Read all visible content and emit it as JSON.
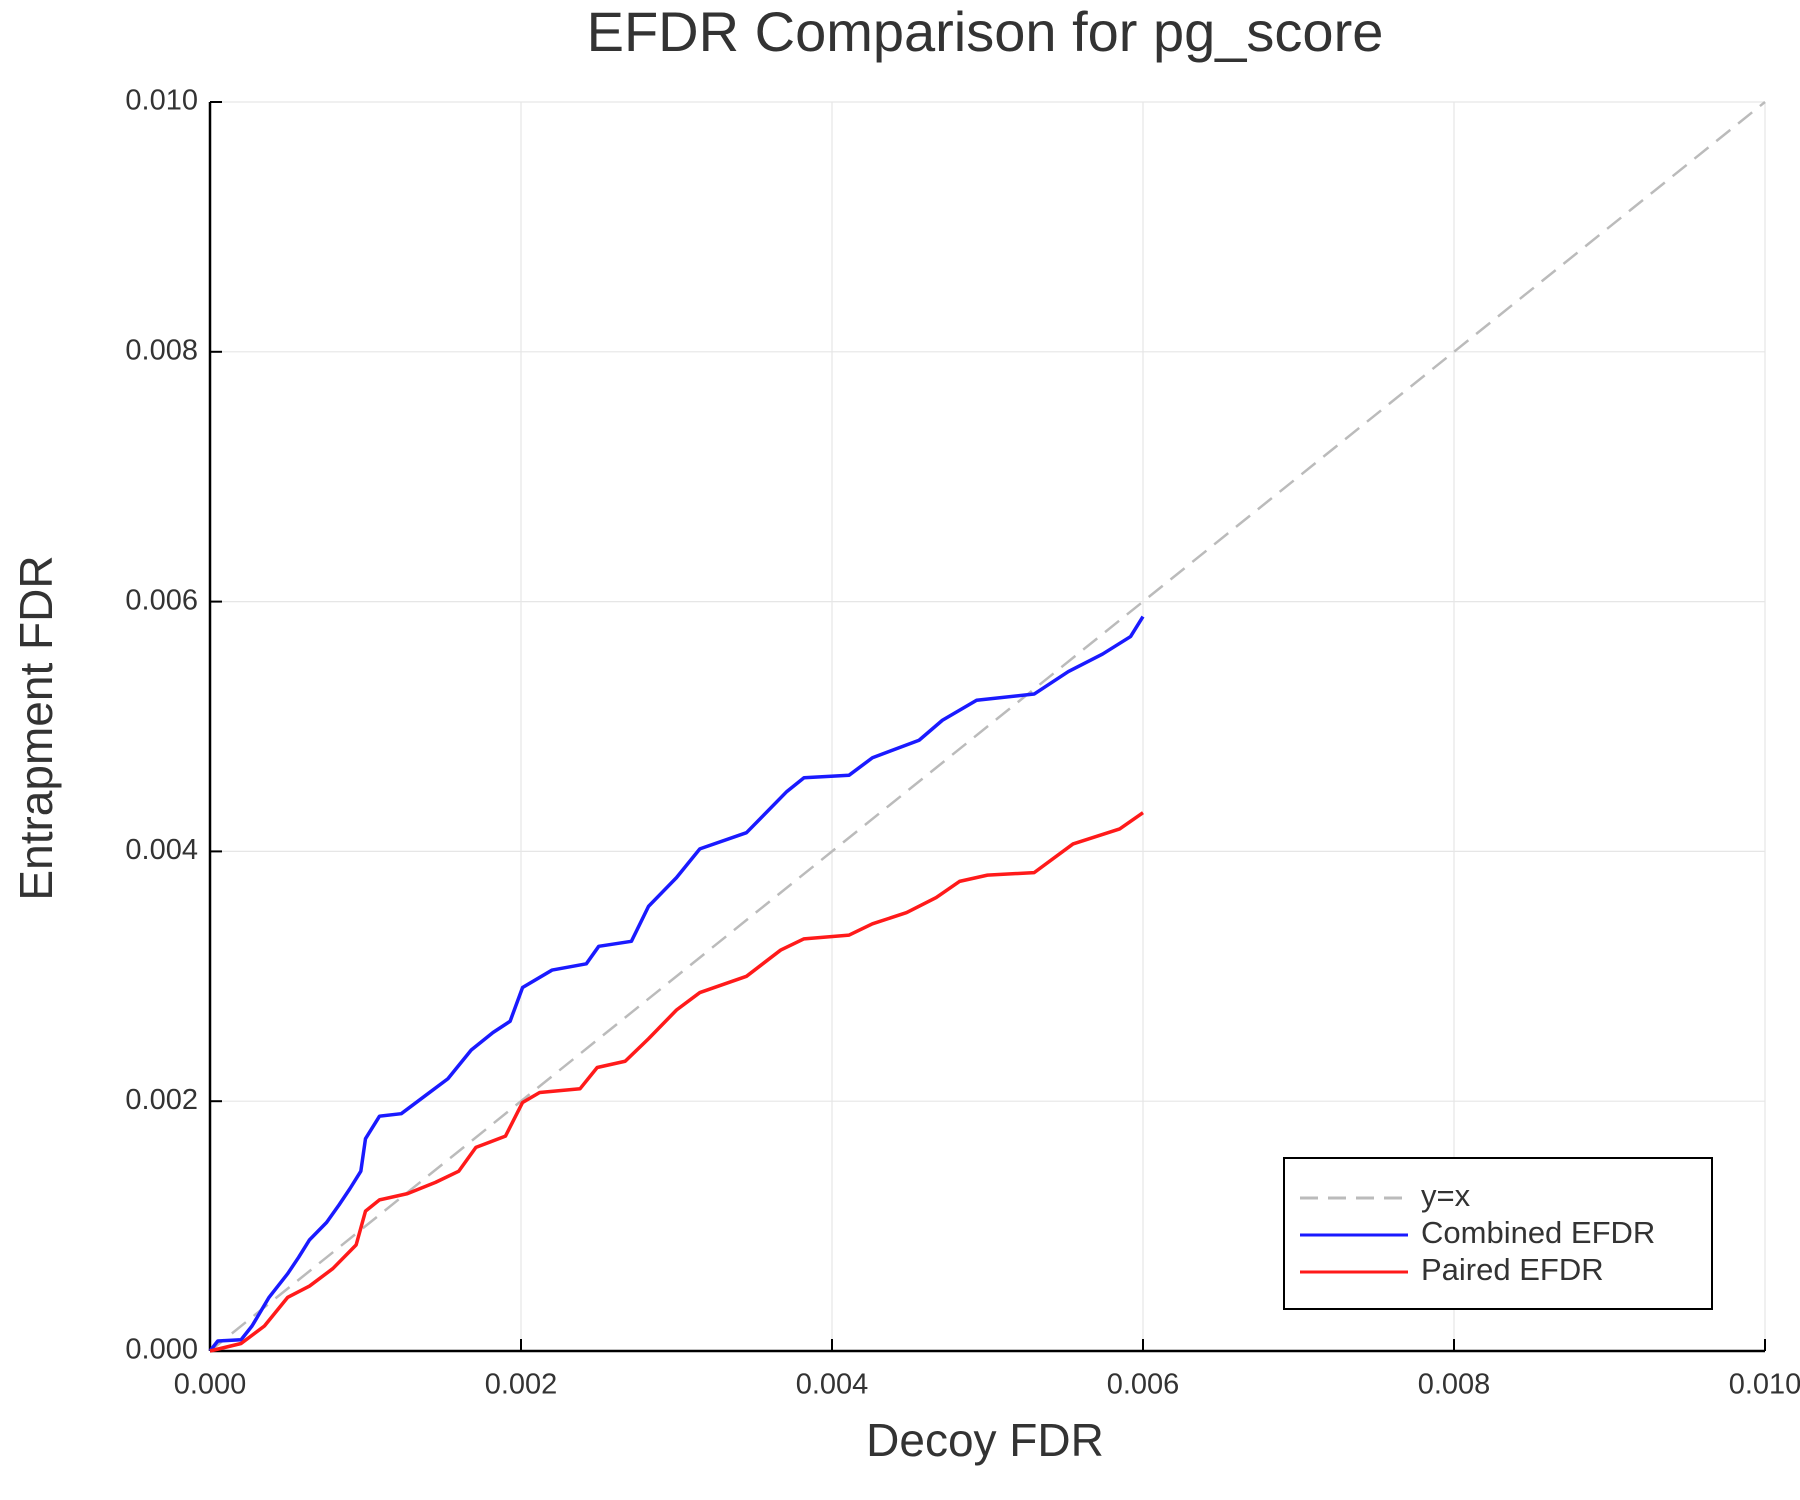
{
  "chart_data": {
    "type": "line",
    "title": "EFDR Comparison for pg_score",
    "x_label": "Decoy FDR",
    "y_label": "Entrapment FDR",
    "xlim": [
      0,
      0.01
    ],
    "ylim": [
      0,
      0.01
    ],
    "xticks": [
      {
        "value": 0,
        "label": "0.000"
      },
      {
        "value": 0.002,
        "label": "0.002"
      },
      {
        "value": 0.004,
        "label": "0.004"
      },
      {
        "value": 0.006,
        "label": "0.006"
      },
      {
        "value": 0.008,
        "label": "0.008"
      },
      {
        "value": 0.01,
        "label": "0.010"
      }
    ],
    "yticks": [
      {
        "value": 0,
        "label": "0.000"
      },
      {
        "value": 0.002,
        "label": "0.002"
      },
      {
        "value": 0.004,
        "label": "0.004"
      },
      {
        "value": 0.006,
        "label": "0.006"
      },
      {
        "value": 0.008,
        "label": "0.008"
      },
      {
        "value": 0.01,
        "label": "0.010"
      }
    ],
    "grid": true,
    "legend": "bottom-right",
    "series": [
      {
        "name": "y=x",
        "color": "#bbbbbb",
        "style": "dashed",
        "x": [
          0,
          0.01
        ],
        "values": [
          0,
          0.01
        ]
      },
      {
        "name": "Combined EFDR",
        "color": "#1a1aff",
        "style": "solid",
        "x": [
          0,
          5e-05,
          0.0002,
          0.00027,
          0.00038,
          0.0005,
          0.00057,
          0.00064,
          0.00075,
          0.00083,
          0.0009,
          0.00097,
          0.001,
          0.00109,
          0.00123,
          0.00138,
          0.00153,
          0.00168,
          0.00182,
          0.00193,
          0.00201,
          0.0022,
          0.00242,
          0.0025,
          0.00271,
          0.00282,
          0.003,
          0.00315,
          0.00345,
          0.00371,
          0.00382,
          0.00411,
          0.00426,
          0.00456,
          0.00471,
          0.00493,
          0.0053,
          0.00552,
          0.00574,
          0.00592,
          0.006
        ],
        "values": [
          0,
          8e-05,
          9e-05,
          0.0002,
          0.00043,
          0.00062,
          0.00075,
          0.00089,
          0.00103,
          0.00117,
          0.0013,
          0.00144,
          0.0017,
          0.00188,
          0.0019,
          0.00204,
          0.00218,
          0.00241,
          0.00255,
          0.00264,
          0.00291,
          0.00305,
          0.0031,
          0.00324,
          0.00328,
          0.00356,
          0.00379,
          0.00402,
          0.00415,
          0.00448,
          0.00459,
          0.00461,
          0.00475,
          0.00489,
          0.00505,
          0.00521,
          0.00526,
          0.00544,
          0.00558,
          0.00572,
          0.00588
        ]
      },
      {
        "name": "Paired EFDR",
        "color": "#ff1a1a",
        "style": "solid",
        "x": [
          0,
          0.0002,
          0.00035,
          0.0005,
          0.00064,
          0.00079,
          0.00094,
          0.001,
          0.00109,
          0.00127,
          0.00145,
          0.0016,
          0.00171,
          0.0019,
          0.00201,
          0.00212,
          0.00238,
          0.00249,
          0.00267,
          0.00282,
          0.003,
          0.00315,
          0.00345,
          0.00367,
          0.00382,
          0.00411,
          0.00426,
          0.00448,
          0.00467,
          0.00482,
          0.005,
          0.0053,
          0.00555,
          0.00585,
          0.006
        ],
        "values": [
          0,
          6e-05,
          0.0002,
          0.00043,
          0.00052,
          0.00066,
          0.00085,
          0.00112,
          0.00121,
          0.00126,
          0.00135,
          0.00144,
          0.00163,
          0.00172,
          0.00199,
          0.00207,
          0.0021,
          0.00227,
          0.00232,
          0.0025,
          0.00273,
          0.00287,
          0.003,
          0.00321,
          0.0033,
          0.00333,
          0.00342,
          0.00351,
          0.00363,
          0.00376,
          0.00381,
          0.00383,
          0.00406,
          0.00418,
          0.00431
        ]
      }
    ]
  }
}
